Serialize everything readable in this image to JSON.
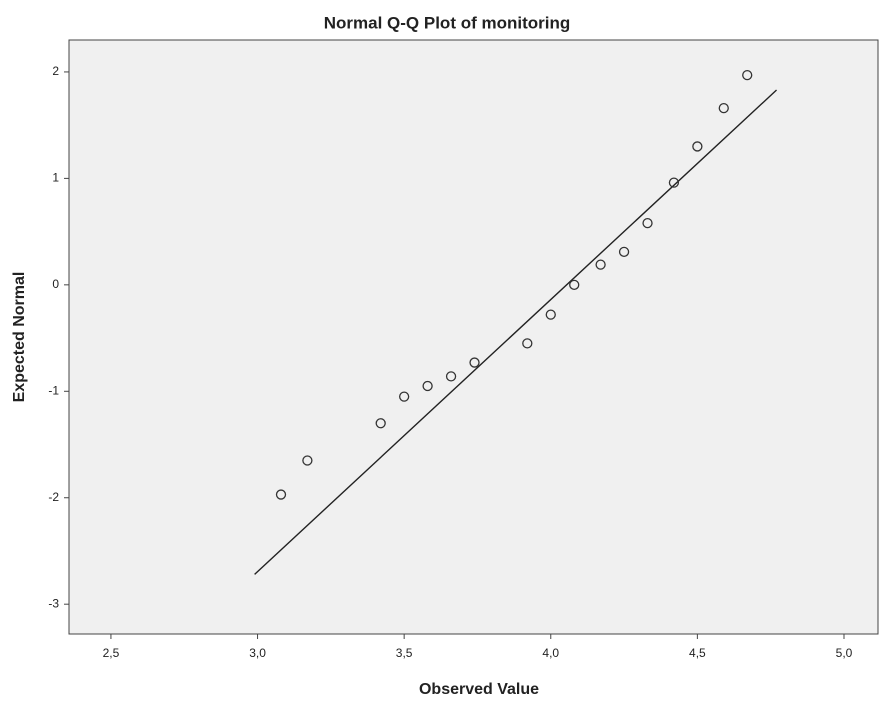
{
  "chart_data": {
    "type": "scatter",
    "title": "Normal Q-Q Plot of monitoring",
    "x_label": "Observed Value",
    "y_label": "Expected Normal",
    "x": [
      3.08,
      3.17,
      3.42,
      3.5,
      3.58,
      3.66,
      3.74,
      3.92,
      4.0,
      4.08,
      4.17,
      4.25,
      4.33,
      4.42,
      4.5,
      4.59,
      4.67
    ],
    "values": [
      -1.97,
      -1.65,
      -1.3,
      -1.05,
      -0.95,
      -0.86,
      -0.73,
      -0.55,
      -0.28,
      0,
      0.19,
      0.31,
      0.58,
      0.96,
      1.3,
      1.66,
      1.97
    ],
    "color": "#333333",
    "reference_line": {
      "x": [
        2.99,
        4.77
      ],
      "y": [
        -2.72,
        1.83
      ],
      "color": "#222222"
    },
    "xlim": [
      2.357,
      5.116
    ],
    "ylim": [
      -3.28,
      2.3
    ],
    "xticks": [
      {
        "value": 2.5,
        "label": "2,5"
      },
      {
        "value": 3.0,
        "label": "3,0"
      },
      {
        "value": 3.5,
        "label": "3,5"
      },
      {
        "value": 4.0,
        "label": "4,0"
      },
      {
        "value": 4.5,
        "label": "4,5"
      },
      {
        "value": 5.0,
        "label": "5,0"
      }
    ],
    "yticks": [
      2,
      1,
      0,
      -1,
      -2,
      -3
    ]
  }
}
